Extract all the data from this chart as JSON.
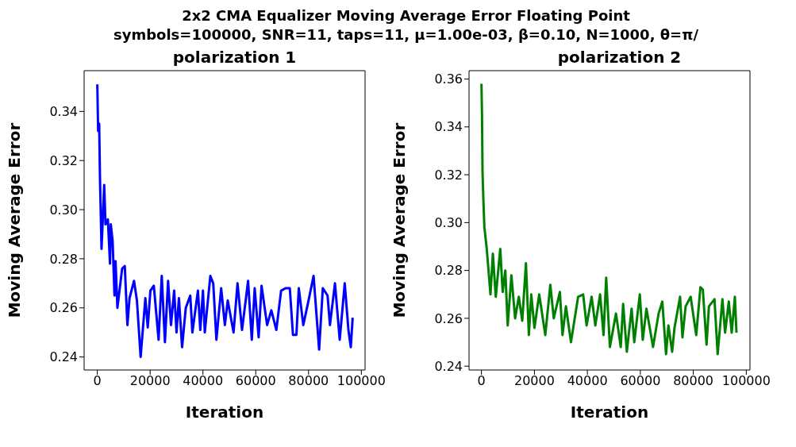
{
  "chart_data": [
    {
      "type": "line",
      "title": "polarization 1",
      "annotations": [
        "2x2 CMA Equalizer Moving Average Error Floating Point",
        "symbols=100000, SNR=11, taps=11, μ=1.00e-03, β=0.10, N=1000, θ=π/"
      ],
      "xlabel": "Iteration",
      "ylabel": "Moving Average Error",
      "xlim": [
        -5000,
        101400
      ],
      "xticks": [
        0,
        20000,
        40000,
        60000,
        80000,
        100000
      ],
      "ylim": [
        0.2347,
        0.3566
      ],
      "yticks": [
        0.24,
        0.26,
        0.28,
        {
          "value": 0.3,
          "label": "0.30"
        },
        0.32,
        0.34
      ],
      "series": [
        {
          "color": "#0000ff",
          "x": [
            0,
            300,
            700,
            1000,
            1600,
            2600,
            3100,
            4000,
            4800,
            5100,
            5800,
            6500,
            6900,
            7600,
            9400,
            10400,
            11400,
            12200,
            13900,
            15000,
            16400,
            18200,
            19100,
            20100,
            21400,
            23200,
            24400,
            25600,
            26800,
            27900,
            29100,
            30000,
            30900,
            32100,
            33500,
            35200,
            36000,
            38100,
            39000,
            40000,
            40700,
            42800,
            43900,
            45100,
            46900,
            48300,
            49400,
            51600,
            53100,
            54800,
            57100,
            58500,
            59600,
            61100,
            62200,
            64300,
            65900,
            67800,
            69600,
            71300,
            72900,
            74100,
            75400,
            76300,
            78000,
            79800,
            81900,
            84000,
            85400,
            87200,
            88100,
            90000,
            91800,
            93700,
            95100,
            96000,
            96700
          ],
          "values": [
            0.351,
            0.332,
            0.335,
            0.313,
            0.284,
            0.31,
            0.294,
            0.296,
            0.278,
            0.294,
            0.287,
            0.265,
            0.279,
            0.26,
            0.276,
            0.277,
            0.253,
            0.264,
            0.271,
            0.263,
            0.24,
            0.264,
            0.252,
            0.267,
            0.269,
            0.247,
            0.273,
            0.246,
            0.271,
            0.253,
            0.267,
            0.25,
            0.264,
            0.244,
            0.26,
            0.265,
            0.25,
            0.267,
            0.251,
            0.267,
            0.25,
            0.273,
            0.27,
            0.247,
            0.268,
            0.253,
            0.263,
            0.25,
            0.27,
            0.251,
            0.271,
            0.247,
            0.268,
            0.248,
            0.269,
            0.253,
            0.259,
            0.251,
            0.267,
            0.268,
            0.268,
            0.249,
            0.249,
            0.268,
            0.253,
            0.262,
            0.273,
            0.243,
            0.268,
            0.265,
            0.253,
            0.27,
            0.247,
            0.27,
            0.251,
            0.244,
            0.256
          ]
        }
      ]
    },
    {
      "type": "line",
      "title": "polarization 2",
      "xlabel": "Iteration",
      "ylabel": "Moving Average Error",
      "xlim": [
        -4700,
        101400
      ],
      "xticks": [
        0,
        20000,
        40000,
        60000,
        80000,
        100000
      ],
      "ylim": [
        0.2384,
        0.3635
      ],
      "yticks": [
        0.24,
        0.26,
        0.28,
        {
          "value": 0.3,
          "label": "0.30"
        },
        0.32,
        0.34,
        0.36
      ],
      "series": [
        {
          "color": "#008000",
          "x": [
            0,
            200,
            400,
            700,
            1100,
            2000,
            3400,
            4300,
            5400,
            7100,
            8000,
            9000,
            9900,
            11300,
            12700,
            14100,
            15400,
            16800,
            17900,
            18800,
            20000,
            21800,
            24100,
            26000,
            27300,
            29600,
            30600,
            31900,
            33800,
            36500,
            38400,
            39700,
            41600,
            43000,
            44800,
            46100,
            47100,
            48500,
            50800,
            52600,
            53500,
            54900,
            56700,
            57700,
            59800,
            60900,
            62300,
            64800,
            66900,
            68300,
            69700,
            70600,
            72000,
            72900,
            75000,
            75900,
            77100,
            79000,
            81100,
            82700,
            83600,
            85000,
            85900,
            88000,
            89200,
            91000,
            92000,
            93400,
            94500,
            95700,
            96300
          ],
          "values": [
            0.358,
            0.345,
            0.321,
            0.31,
            0.298,
            0.289,
            0.27,
            0.287,
            0.269,
            0.289,
            0.271,
            0.28,
            0.257,
            0.278,
            0.26,
            0.269,
            0.259,
            0.283,
            0.253,
            0.27,
            0.256,
            0.27,
            0.253,
            0.274,
            0.26,
            0.271,
            0.253,
            0.265,
            0.25,
            0.269,
            0.27,
            0.257,
            0.269,
            0.257,
            0.27,
            0.253,
            0.277,
            0.248,
            0.262,
            0.248,
            0.266,
            0.246,
            0.264,
            0.25,
            0.27,
            0.251,
            0.264,
            0.248,
            0.262,
            0.267,
            0.245,
            0.257,
            0.246,
            0.256,
            0.269,
            0.252,
            0.265,
            0.269,
            0.253,
            0.273,
            0.272,
            0.249,
            0.265,
            0.268,
            0.245,
            0.268,
            0.254,
            0.267,
            0.254,
            0.269,
            0.254
          ]
        }
      ]
    }
  ]
}
